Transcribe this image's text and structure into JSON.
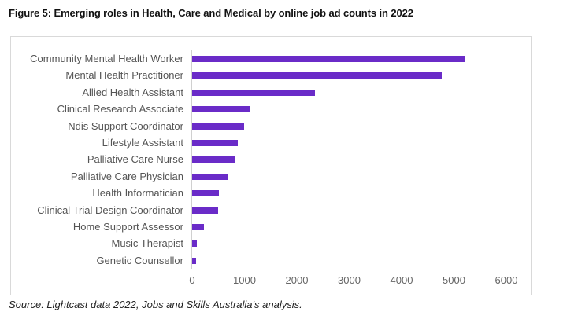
{
  "figure": {
    "title": "Figure 5: Emerging roles in Health, Care and Medical by online job ad counts in 2022",
    "source": "Source: Lightcast data 2022, Jobs and Skills Australia's analysis."
  },
  "colors": {
    "bar": "#6a2bc8",
    "axis": "#d0d0d0",
    "frame": "#d9d9d9"
  },
  "chart_data": {
    "type": "bar",
    "orientation": "horizontal",
    "title": "Figure 5: Emerging roles in Health, Care and Medical by online job ad counts in 2022",
    "xlabel": "",
    "ylabel": "",
    "xlim": [
      0,
      6000
    ],
    "xticks": [
      "0",
      "1000",
      "2000",
      "3000",
      "4000",
      "5000",
      "6000"
    ],
    "grid": false,
    "legend": null,
    "categories": [
      "Community Mental Health Worker",
      "Mental Health Practitioner",
      "Allied Health Assistant",
      "Clinical Research Associate",
      "Ndis Support Coordinator",
      "Lifestyle Assistant",
      "Palliative Care Nurse",
      "Palliative Care Physician",
      "Health Informatician",
      "Clinical Trial Design Coordinator",
      "Home Support Assessor",
      "Music Therapist",
      "Genetic Counsellor"
    ],
    "values": [
      5220,
      4770,
      2350,
      1110,
      990,
      870,
      810,
      680,
      510,
      490,
      230,
      90,
      80
    ],
    "annotations": [
      "Source: Lightcast data 2022, Jobs and Skills Australia's analysis."
    ]
  }
}
